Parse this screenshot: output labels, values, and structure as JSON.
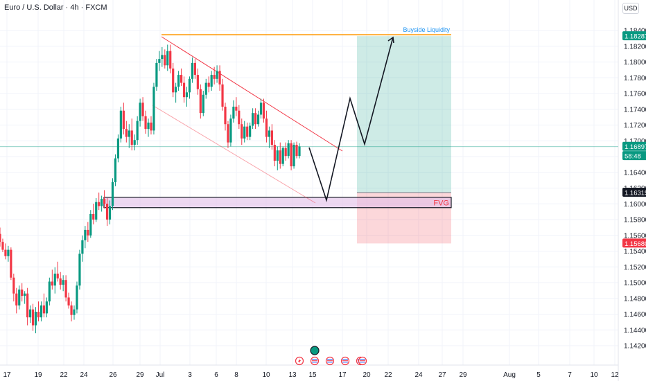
{
  "header": {
    "symbol": "Euro / U.S. Dollar · 4h · FXCM",
    "currency": "USD"
  },
  "colors": {
    "up": "#089981",
    "down": "#f23645",
    "liquidity_line": "#ff9800",
    "liquidity_text": "#2196f3",
    "channel_line": "#f23645",
    "fvg_fill": "#e1bee7",
    "target_zone": "#089981",
    "stop_zone": "#f23645",
    "current_price_line": "#089981"
  },
  "chart_data": {
    "type": "candlestick",
    "symbol": "EURUSD",
    "timeframe": "4h",
    "ylim": [
      1.1415,
      1.1855
    ],
    "y_ticks": [
      "1.18400",
      "1.18200",
      "1.18000",
      "1.17800",
      "1.17600",
      "1.17400",
      "1.17200",
      "1.17000",
      "1.16600",
      "1.16400",
      "1.16200",
      "1.16000",
      "1.15800",
      "1.15600",
      "1.15400",
      "1.15200",
      "1.15000",
      "1.14800",
      "1.14600",
      "1.14400",
      "1.14200"
    ],
    "x_ticks": [
      "17",
      "19",
      "22",
      "24",
      "26",
      "29",
      "Jul",
      "3",
      "6",
      "8",
      "10",
      "13",
      "15",
      "17",
      "20",
      "22",
      "24",
      "27",
      "29",
      "Aug",
      "5",
      "7",
      "10",
      "12"
    ],
    "price_labels": [
      {
        "text": "1.18287",
        "value": 1.18287,
        "color": "#089981"
      },
      {
        "text": "1.16897",
        "value": 1.16897,
        "color": "#089981"
      },
      {
        "text": "58:48",
        "value": 1.1678,
        "color": "#089981"
      },
      {
        "text": "1.16319",
        "value": 1.16319,
        "color": "#131722"
      },
      {
        "text": "1.15680",
        "value": 1.1568,
        "color": "#f23645"
      }
    ],
    "annotations": {
      "buyside_liquidity": {
        "text": "Buyside Liquidity",
        "value": 1.18287
      },
      "fvg": {
        "text": "FVG",
        "top": 1.1626,
        "bottom": 1.1613
      },
      "long_position": {
        "entry": 1.16319,
        "target": 1.18287,
        "stop": 1.1568
      }
    },
    "candles": [
      [
        1.158,
        1.1588,
        1.1564,
        1.157
      ],
      [
        1.157,
        1.1574,
        1.1557,
        1.156
      ],
      [
        1.156,
        1.1568,
        1.1548,
        1.1552
      ],
      [
        1.1552,
        1.1565,
        1.1545,
        1.156
      ],
      [
        1.156,
        1.1563,
        1.1522,
        1.1525
      ],
      [
        1.1525,
        1.153,
        1.1495,
        1.1505
      ],
      [
        1.1505,
        1.1512,
        1.148,
        1.149
      ],
      [
        1.149,
        1.1515,
        1.1485,
        1.151
      ],
      [
        1.151,
        1.1518,
        1.1495,
        1.1502
      ],
      [
        1.1502,
        1.1508,
        1.1492,
        1.1505
      ],
      [
        1.1505,
        1.1512,
        1.1465,
        1.1475
      ],
      [
        1.1475,
        1.149,
        1.1468,
        1.1485
      ],
      [
        1.1485,
        1.1492,
        1.1458,
        1.1465
      ],
      [
        1.1465,
        1.1488,
        1.1455,
        1.1482
      ],
      [
        1.1482,
        1.1495,
        1.147,
        1.1475
      ],
      [
        1.1475,
        1.1495,
        1.147,
        1.149
      ],
      [
        1.149,
        1.1505,
        1.1475,
        1.148
      ],
      [
        1.148,
        1.15,
        1.1475,
        1.1495
      ],
      [
        1.1495,
        1.1525,
        1.149,
        1.152
      ],
      [
        1.152,
        1.1535,
        1.151,
        1.1515
      ],
      [
        1.1515,
        1.1538,
        1.1505,
        1.153
      ],
      [
        1.153,
        1.1545,
        1.152,
        1.1524
      ],
      [
        1.1524,
        1.1532,
        1.151,
        1.1516
      ],
      [
        1.1516,
        1.1528,
        1.1508,
        1.1522
      ],
      [
        1.1522,
        1.1528,
        1.1495,
        1.15
      ],
      [
        1.15,
        1.1506,
        1.1486,
        1.149
      ],
      [
        1.149,
        1.1495,
        1.147,
        1.1478
      ],
      [
        1.1478,
        1.149,
        1.1472,
        1.1485
      ],
      [
        1.1485,
        1.152,
        1.148,
        1.1515
      ],
      [
        1.1515,
        1.156,
        1.151,
        1.1555
      ],
      [
        1.1555,
        1.1578,
        1.1545,
        1.1572
      ],
      [
        1.1572,
        1.159,
        1.1562,
        1.1585
      ],
      [
        1.1585,
        1.1595,
        1.157,
        1.1578
      ],
      [
        1.1578,
        1.161,
        1.1575,
        1.1605
      ],
      [
        1.1605,
        1.1618,
        1.1592,
        1.1598
      ],
      [
        1.1598,
        1.1625,
        1.1595,
        1.162
      ],
      [
        1.162,
        1.1632,
        1.161,
        1.1615
      ],
      [
        1.1615,
        1.1628,
        1.1608,
        1.1624
      ],
      [
        1.1624,
        1.1635,
        1.1612,
        1.1618
      ],
      [
        1.1618,
        1.1625,
        1.159,
        1.1598
      ],
      [
        1.1598,
        1.1622,
        1.1592,
        1.1615
      ],
      [
        1.1615,
        1.165,
        1.161,
        1.1645
      ],
      [
        1.1645,
        1.168,
        1.164,
        1.1675
      ],
      [
        1.1675,
        1.1705,
        1.167,
        1.17
      ],
      [
        1.17,
        1.174,
        1.1695,
        1.1735
      ],
      [
        1.1735,
        1.1745,
        1.1705,
        1.1712
      ],
      [
        1.1712,
        1.1722,
        1.1695,
        1.1702
      ],
      [
        1.1702,
        1.1718,
        1.1688,
        1.171
      ],
      [
        1.171,
        1.1725,
        1.1685,
        1.1692
      ],
      [
        1.1692,
        1.1705,
        1.1685,
        1.1698
      ],
      [
        1.1698,
        1.1728,
        1.1692,
        1.1722
      ],
      [
        1.1722,
        1.175,
        1.1715,
        1.1745
      ],
      [
        1.1745,
        1.1752,
        1.1722,
        1.1728
      ],
      [
        1.1728,
        1.1735,
        1.1706,
        1.1712
      ],
      [
        1.1712,
        1.1725,
        1.1702,
        1.172
      ],
      [
        1.172,
        1.1728,
        1.1705,
        1.171
      ],
      [
        1.171,
        1.177,
        1.1705,
        1.1765
      ],
      [
        1.1765,
        1.18,
        1.176,
        1.1795
      ],
      [
        1.1795,
        1.181,
        1.1785,
        1.18
      ],
      [
        1.18,
        1.1815,
        1.179,
        1.1805
      ],
      [
        1.1805,
        1.1812,
        1.1788,
        1.1792
      ],
      [
        1.1792,
        1.1818,
        1.1785,
        1.181
      ],
      [
        1.181,
        1.1818,
        1.1782,
        1.1788
      ],
      [
        1.1788,
        1.1795,
        1.1752,
        1.1758
      ],
      [
        1.1758,
        1.177,
        1.1745,
        1.1765
      ],
      [
        1.1765,
        1.1785,
        1.176,
        1.178
      ],
      [
        1.178,
        1.1788,
        1.1766,
        1.177
      ],
      [
        1.177,
        1.1778,
        1.1745,
        1.1752
      ],
      [
        1.1752,
        1.1765,
        1.174,
        1.1758
      ],
      [
        1.1758,
        1.1778,
        1.175,
        1.1775
      ],
      [
        1.1775,
        1.1802,
        1.177,
        1.1795
      ],
      [
        1.1795,
        1.18,
        1.1775,
        1.178
      ],
      [
        1.178,
        1.1788,
        1.1755,
        1.1762
      ],
      [
        1.1762,
        1.1768,
        1.1725,
        1.1732
      ],
      [
        1.1732,
        1.176,
        1.1728,
        1.1755
      ],
      [
        1.1755,
        1.1775,
        1.175,
        1.177
      ],
      [
        1.177,
        1.1778,
        1.1758,
        1.1765
      ],
      [
        1.1765,
        1.1785,
        1.176,
        1.178
      ],
      [
        1.178,
        1.179,
        1.1768,
        1.1775
      ],
      [
        1.1775,
        1.1792,
        1.177,
        1.1785
      ],
      [
        1.1785,
        1.1792,
        1.176,
        1.1768
      ],
      [
        1.1768,
        1.1775,
        1.1735,
        1.174
      ],
      [
        1.174,
        1.1745,
        1.171,
        1.1718
      ],
      [
        1.1718,
        1.1722,
        1.1688,
        1.1695
      ],
      [
        1.1695,
        1.173,
        1.169,
        1.1725
      ],
      [
        1.1725,
        1.1748,
        1.172,
        1.174
      ],
      [
        1.174,
        1.1752,
        1.1728,
        1.1735
      ],
      [
        1.1735,
        1.1742,
        1.1712,
        1.1718
      ],
      [
        1.1718,
        1.1725,
        1.1692,
        1.17
      ],
      [
        1.17,
        1.1722,
        1.1695,
        1.1715
      ],
      [
        1.1715,
        1.172,
        1.1698,
        1.1702
      ],
      [
        1.1702,
        1.172,
        1.1698,
        1.1716
      ],
      [
        1.1716,
        1.1738,
        1.1712,
        1.1732
      ],
      [
        1.1732,
        1.1738,
        1.1712,
        1.1718
      ],
      [
        1.1718,
        1.1735,
        1.1715,
        1.173
      ],
      [
        1.173,
        1.175,
        1.1725,
        1.1745
      ],
      [
        1.1745,
        1.175,
        1.172,
        1.1725
      ],
      [
        1.1725,
        1.1735,
        1.1695,
        1.1702
      ],
      [
        1.1702,
        1.1715,
        1.1688,
        1.171
      ],
      [
        1.171,
        1.1718,
        1.1686,
        1.1692
      ],
      [
        1.1692,
        1.1698,
        1.1665,
        1.1672
      ],
      [
        1.1672,
        1.169,
        1.166,
        1.1685
      ],
      [
        1.1685,
        1.1695,
        1.1662,
        1.1668
      ],
      [
        1.1668,
        1.169,
        1.1665,
        1.1688
      ],
      [
        1.1688,
        1.1695,
        1.1672,
        1.1678
      ],
      [
        1.1678,
        1.1698,
        1.1675,
        1.1694
      ],
      [
        1.1694,
        1.1698,
        1.166,
        1.1665
      ],
      [
        1.1665,
        1.1695,
        1.1662,
        1.1692
      ],
      [
        1.1692,
        1.1696,
        1.1675,
        1.1678
      ],
      [
        1.1678,
        1.1694,
        1.1675,
        1.169
      ]
    ],
    "projection_path": [
      [
        446,
        213
      ],
      [
        471,
        289
      ],
      [
        505,
        142
      ],
      [
        526,
        208
      ],
      [
        567,
        54
      ]
    ]
  },
  "bottom_icons": [
    "lightning-icon",
    "us-flag-icon",
    "us-flag-icon",
    "us-flag-icon",
    "us-flag-icon",
    "us-flag-icon"
  ]
}
